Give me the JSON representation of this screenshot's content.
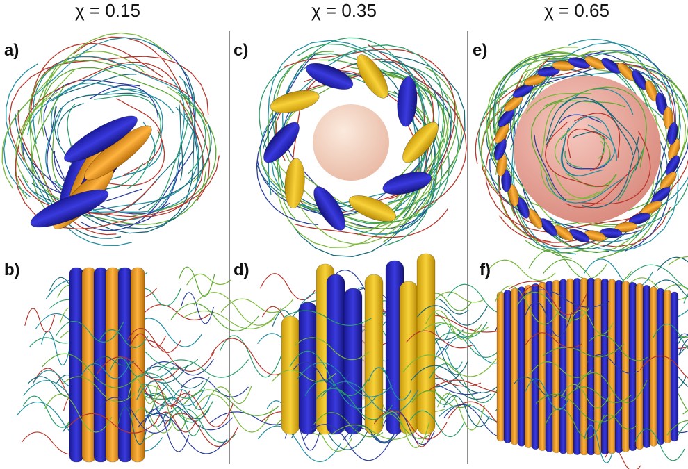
{
  "columns": [
    {
      "header": "χ = 0.15",
      "panels": [
        "a)",
        "b)"
      ]
    },
    {
      "header": "χ = 0.35",
      "panels": [
        "c)",
        "d)"
      ]
    },
    {
      "header": "χ = 0.65",
      "panels": [
        "e)",
        "f)"
      ]
    }
  ]
}
